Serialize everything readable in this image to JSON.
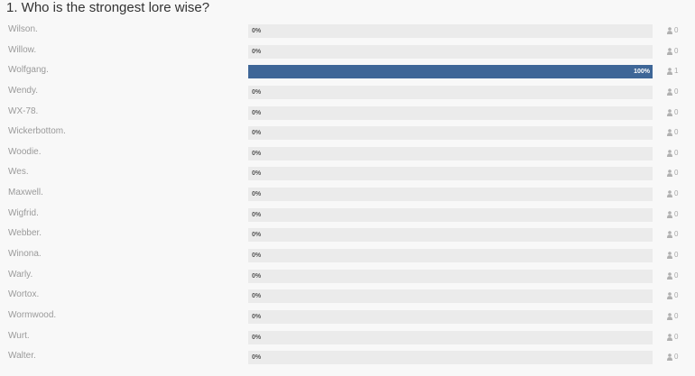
{
  "poll": {
    "question": "1. Who is the strongest lore wise?",
    "bar_color": "#3e6697",
    "track_color": "#ebebeb",
    "options": [
      {
        "name": "Wilson.",
        "percent": 0,
        "percent_label": "0%",
        "votes": "0"
      },
      {
        "name": "Willow.",
        "percent": 0,
        "percent_label": "0%",
        "votes": "0"
      },
      {
        "name": "Wolfgang.",
        "percent": 100,
        "percent_label": "100%",
        "votes": "1"
      },
      {
        "name": "Wendy.",
        "percent": 0,
        "percent_label": "0%",
        "votes": "0"
      },
      {
        "name": "WX-78.",
        "percent": 0,
        "percent_label": "0%",
        "votes": "0"
      },
      {
        "name": "Wickerbottom.",
        "percent": 0,
        "percent_label": "0%",
        "votes": "0"
      },
      {
        "name": "Woodie.",
        "percent": 0,
        "percent_label": "0%",
        "votes": "0"
      },
      {
        "name": "Wes.",
        "percent": 0,
        "percent_label": "0%",
        "votes": "0"
      },
      {
        "name": "Maxwell.",
        "percent": 0,
        "percent_label": "0%",
        "votes": "0"
      },
      {
        "name": "Wigfrid.",
        "percent": 0,
        "percent_label": "0%",
        "votes": "0"
      },
      {
        "name": "Webber.",
        "percent": 0,
        "percent_label": "0%",
        "votes": "0"
      },
      {
        "name": "Winona.",
        "percent": 0,
        "percent_label": "0%",
        "votes": "0"
      },
      {
        "name": "Warly.",
        "percent": 0,
        "percent_label": "0%",
        "votes": "0"
      },
      {
        "name": "Wortox.",
        "percent": 0,
        "percent_label": "0%",
        "votes": "0"
      },
      {
        "name": "Wormwood.",
        "percent": 0,
        "percent_label": "0%",
        "votes": "0"
      },
      {
        "name": "Wurt.",
        "percent": 0,
        "percent_label": "0%",
        "votes": "0"
      },
      {
        "name": "Walter.",
        "percent": 0,
        "percent_label": "0%",
        "votes": "0"
      }
    ]
  }
}
